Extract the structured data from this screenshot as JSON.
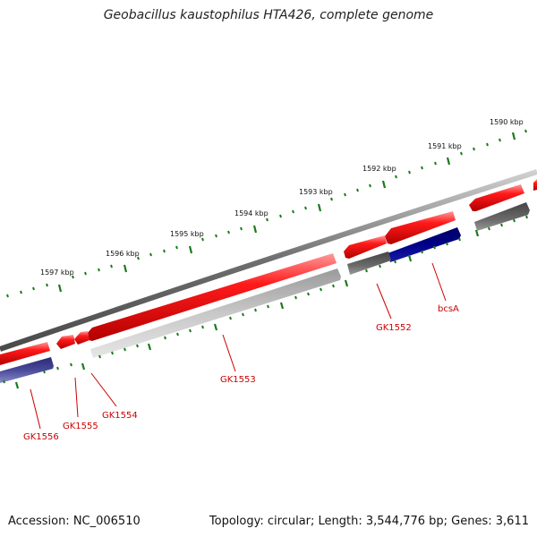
{
  "title": "Geobacillus kaustophilus HTA426, complete genome",
  "footer": {
    "accession": "Accession: NC_006510",
    "topology": "Topology: circular; Length: 3,544,776 bp; Genes: 3,611"
  },
  "colors": {
    "backbone": "#7a7a7a",
    "tick": "#1a7a1a",
    "forward_gene": "#e00000",
    "reverse_gene_gray": "#a0a0a0",
    "reverse_gene_blue": "#1a1a8a",
    "label": "#cc0000"
  },
  "kbp_labels": [
    "1590 kbp",
    "1591 kbp",
    "1592 kbp",
    "1593 kbp",
    "1594 kbp",
    "1595 kbp",
    "1596 kbp",
    "1597 kbp"
  ],
  "gene_labels": [
    "GK1556",
    "GK1555",
    "GK1554",
    "GK1553",
    "GK1552",
    "bcsA"
  ]
}
